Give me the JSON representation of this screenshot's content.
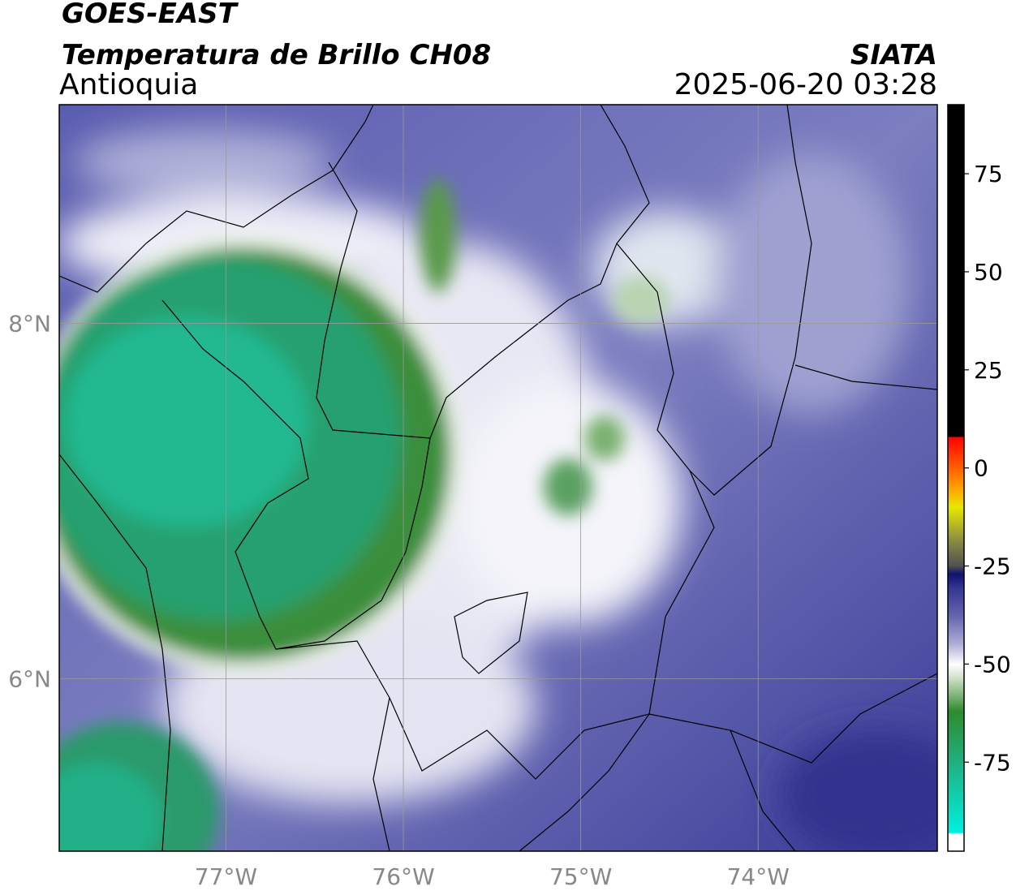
{
  "header": {
    "title": "GOES-EAST",
    "subtitle": "Temperatura de Brillo CH08",
    "region": "Antioquia",
    "source": "SIATA",
    "datetime": "2025-06-20 03:28"
  },
  "map": {
    "xlim": [
      -77.94,
      -72.99
    ],
    "ylim": [
      5.03,
      9.23
    ],
    "xticks": [
      {
        "value": -77,
        "label": "77°W"
      },
      {
        "value": -76,
        "label": "76°W"
      },
      {
        "value": -75,
        "label": "75°W"
      },
      {
        "value": -74,
        "label": "74°W"
      }
    ],
    "yticks": [
      {
        "value": 8,
        "label": "8°N"
      },
      {
        "value": 6,
        "label": "6°N"
      }
    ],
    "grid": true
  },
  "colorbar": {
    "lim": [
      -97.7,
      92.6
    ],
    "ticks": [
      75,
      50,
      25,
      0,
      -25,
      -50,
      -75
    ],
    "colormap": [
      {
        "value": -97.7,
        "color": "#ffffff"
      },
      {
        "value": -93,
        "color": "#ffffff"
      },
      {
        "value": -93,
        "color": "#00f0e0"
      },
      {
        "value": -75,
        "color": "#20b080"
      },
      {
        "value": -62,
        "color": "#2e8b2e"
      },
      {
        "value": -54,
        "color": "#c8dcc0"
      },
      {
        "value": -50,
        "color": "#ffffff"
      },
      {
        "value": -45,
        "color": "#b0b0d8"
      },
      {
        "value": -38,
        "color": "#6668b0"
      },
      {
        "value": -30,
        "color": "#303090"
      },
      {
        "value": -27,
        "color": "#101070"
      },
      {
        "value": -25,
        "color": "#505050"
      },
      {
        "value": -18,
        "color": "#909040"
      },
      {
        "value": -10,
        "color": "#e8e800"
      },
      {
        "value": -5,
        "color": "#ffa000"
      },
      {
        "value": 0,
        "color": "#ff6000"
      },
      {
        "value": 8,
        "color": "#ff0000"
      },
      {
        "value": 8,
        "color": "#000000"
      },
      {
        "value": 92.6,
        "color": "#000000"
      }
    ]
  }
}
